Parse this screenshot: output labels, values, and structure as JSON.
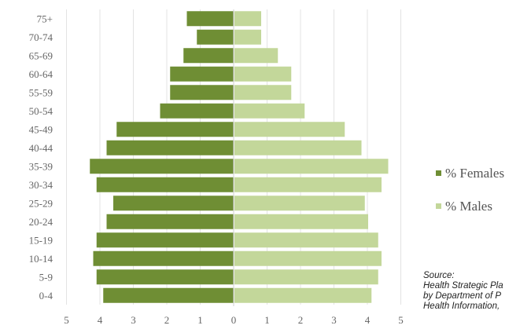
{
  "chart_data": {
    "type": "bar",
    "orientation": "horizontal",
    "subtype": "population-pyramid",
    "categories": [
      "0-4",
      "5-9",
      "10-14",
      "15-19",
      "20-24",
      "25-29",
      "30-34",
      "35-39",
      "40-44",
      "45-49",
      "50-54",
      "55-59",
      "60-64",
      "65-69",
      "70-74",
      "75+"
    ],
    "series": [
      {
        "name": "% Females",
        "color": "#6f8e34",
        "side": "left",
        "values": [
          3.9,
          4.1,
          4.2,
          4.1,
          3.8,
          3.6,
          4.1,
          4.3,
          3.8,
          3.5,
          2.2,
          1.9,
          1.9,
          1.5,
          1.1,
          1.4
        ]
      },
      {
        "name": "% Males",
        "color": "#c3d79a",
        "side": "right",
        "values": [
          4.1,
          4.3,
          4.4,
          4.3,
          4.0,
          3.9,
          4.4,
          4.6,
          3.8,
          3.3,
          2.1,
          1.7,
          1.7,
          1.3,
          0.8,
          0.8
        ]
      }
    ],
    "x_ticks": [
      5,
      4,
      3,
      2,
      1,
      0,
      1,
      2,
      3,
      4,
      5
    ],
    "xlim": [
      -5,
      5
    ],
    "grid": "vertical",
    "legend": "right",
    "title": "",
    "xlabel": "",
    "ylabel": ""
  },
  "source": {
    "lines": [
      "Source:",
      "Health Strategic Pla",
      "by Department of P",
      "Health Information,"
    ]
  }
}
